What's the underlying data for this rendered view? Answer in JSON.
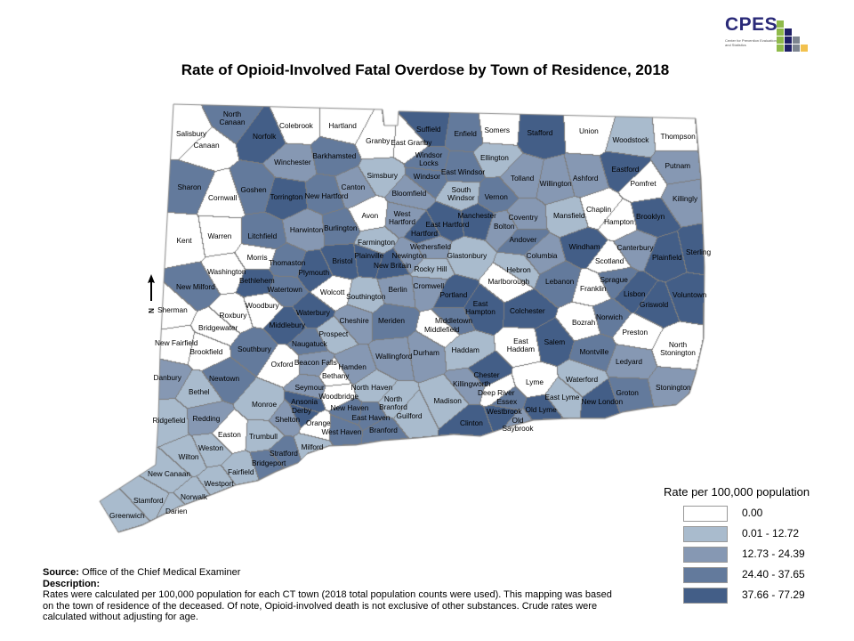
{
  "title": "Rate of Opioid-Involved Fatal Overdose by Town of Residence, 2018",
  "logo": {
    "acronym": "CPES",
    "subtitle": "Center for Prevention Evaluation and Statistics"
  },
  "north_arrow_label": "N",
  "legend": {
    "title": "Rate per 100,000 population",
    "classes": [
      {
        "label": "0.00",
        "color": "#ffffff"
      },
      {
        "label": "0.01 - 12.72",
        "color": "#a9bbcd"
      },
      {
        "label": "12.73 - 24.39",
        "color": "#8698b3"
      },
      {
        "label": "24.40 - 37.65",
        "color": "#637a9c"
      },
      {
        "label": "37.66 - 77.29",
        "color": "#435e87"
      }
    ]
  },
  "footer": {
    "source_label": "Source:",
    "source": "Office of the Chief Medical Examiner",
    "description_label": "Description:",
    "description": "Rates were calculated per 100,000 population for each CT town (2018 total population counts were used). This mapping was based on the town of residence of the deceased. Of note,  Opioid-involved death is not exclusive of other substances. Crude rates were calculated without adjusting for age."
  },
  "towns": [
    {
      "name": "Salisbury",
      "class": 0
    },
    {
      "name": "North Canaan",
      "class": 3
    },
    {
      "name": "Canaan",
      "class": 0
    },
    {
      "name": "Norfolk",
      "class": 4
    },
    {
      "name": "Colebrook",
      "class": 0
    },
    {
      "name": "Hartland",
      "class": 0
    },
    {
      "name": "Granby",
      "class": 0
    },
    {
      "name": "East Granby",
      "class": 0
    },
    {
      "name": "Winchester",
      "class": 2
    },
    {
      "name": "Barkhamsted",
      "class": 3
    },
    {
      "name": "Sharon",
      "class": 3
    },
    {
      "name": "Cornwall",
      "class": 0
    },
    {
      "name": "Goshen",
      "class": 3
    },
    {
      "name": "Torrington",
      "class": 4
    },
    {
      "name": "New Hartford",
      "class": 3
    },
    {
      "name": "Canton",
      "class": 2
    },
    {
      "name": "Simsbury",
      "class": 1
    },
    {
      "name": "Bloomfield",
      "class": 2
    },
    {
      "name": "Avon",
      "class": 0
    },
    {
      "name": "West Hartford",
      "class": 2
    },
    {
      "name": "Kent",
      "class": 0
    },
    {
      "name": "Warren",
      "class": 0
    },
    {
      "name": "Litchfield",
      "class": 3
    },
    {
      "name": "Harwinton",
      "class": 2
    },
    {
      "name": "Burlington",
      "class": 3
    },
    {
      "name": "Farmington",
      "class": 1
    },
    {
      "name": "Morris",
      "class": 0
    },
    {
      "name": "Washington",
      "class": 0
    },
    {
      "name": "Thomaston",
      "class": 3
    },
    {
      "name": "Plymouth",
      "class": 4
    },
    {
      "name": "Bristol",
      "class": 4
    },
    {
      "name": "Plainville",
      "class": 4
    },
    {
      "name": "New Britain",
      "class": 4
    },
    {
      "name": "Newington",
      "class": 2
    },
    {
      "name": "Hartford",
      "class": 4
    },
    {
      "name": "Suffield",
      "class": 4
    },
    {
      "name": "Windsor Locks",
      "class": 3
    },
    {
      "name": "Windsor",
      "class": 3
    },
    {
      "name": "East Windsor",
      "class": 3
    },
    {
      "name": "South Windsor",
      "class": 1
    },
    {
      "name": "East Hartford",
      "class": 4
    },
    {
      "name": "Manchester",
      "class": 4
    },
    {
      "name": "Wethersfield",
      "class": 2
    },
    {
      "name": "Glastonbury",
      "class": 1
    },
    {
      "name": "Rocky Hill",
      "class": 1
    },
    {
      "name": "Cromwell",
      "class": 2
    },
    {
      "name": "Berlin",
      "class": 2
    },
    {
      "name": "Southington",
      "class": 1
    },
    {
      "name": "Portland",
      "class": 4
    },
    {
      "name": "East Hampton",
      "class": 4
    },
    {
      "name": "Marlborough",
      "class": 0
    },
    {
      "name": "Hebron",
      "class": 1
    },
    {
      "name": "Bolton",
      "class": 2
    },
    {
      "name": "Coventry",
      "class": 2
    },
    {
      "name": "Andover",
      "class": 3
    },
    {
      "name": "Vernon",
      "class": 3
    },
    {
      "name": "Ellington",
      "class": 1
    },
    {
      "name": "Tolland",
      "class": 2
    },
    {
      "name": "Enfield",
      "class": 3
    },
    {
      "name": "Somers",
      "class": 0
    },
    {
      "name": "Stafford",
      "class": 4
    },
    {
      "name": "Union",
      "class": 0
    },
    {
      "name": "Woodstock",
      "class": 1
    },
    {
      "name": "Thompson",
      "class": 0
    },
    {
      "name": "Putnam",
      "class": 2
    },
    {
      "name": "Eastford",
      "class": 4
    },
    {
      "name": "Ashford",
      "class": 2
    },
    {
      "name": "Willington",
      "class": 2
    },
    {
      "name": "Pomfret",
      "class": 0
    },
    {
      "name": "Killingly",
      "class": 2
    },
    {
      "name": "Mansfield",
      "class": 1
    },
    {
      "name": "Chaplin",
      "class": 0
    },
    {
      "name": "Hampton",
      "class": 0
    },
    {
      "name": "Brooklyn",
      "class": 4
    },
    {
      "name": "Windham",
      "class": 4
    },
    {
      "name": "Canterbury",
      "class": 2
    },
    {
      "name": "Plainfield",
      "class": 4
    },
    {
      "name": "Sterling",
      "class": 4
    },
    {
      "name": "Columbia",
      "class": 2
    },
    {
      "name": "Scotland",
      "class": 0
    },
    {
      "name": "Lebanon",
      "class": 3
    },
    {
      "name": "Franklin",
      "class": 0
    },
    {
      "name": "Sprague",
      "class": 3
    },
    {
      "name": "Lisbon",
      "class": 4
    },
    {
      "name": "Griswold",
      "class": 4
    },
    {
      "name": "Voluntown",
      "class": 4
    },
    {
      "name": "Colchester",
      "class": 4
    },
    {
      "name": "Bozrah",
      "class": 0
    },
    {
      "name": "Norwich",
      "class": 3
    },
    {
      "name": "Preston",
      "class": 0
    },
    {
      "name": "North Stonington",
      "class": 0
    },
    {
      "name": "Salem",
      "class": 4
    },
    {
      "name": "Montville",
      "class": 3
    },
    {
      "name": "Ledyard",
      "class": 2
    },
    {
      "name": "East Haddam",
      "class": 0
    },
    {
      "name": "Haddam",
      "class": 1
    },
    {
      "name": "Middletown",
      "class": 3
    },
    {
      "name": "Middlefield",
      "class": 0
    },
    {
      "name": "Durham",
      "class": 2
    },
    {
      "name": "Meriden",
      "class": 3
    },
    {
      "name": "Cheshire",
      "class": 2
    },
    {
      "name": "Wallingford",
      "class": 2
    },
    {
      "name": "Waterbury",
      "class": 4
    },
    {
      "name": "Middlebury",
      "class": 4
    },
    {
      "name": "Watertown",
      "class": 3
    },
    {
      "name": "Bethlehem",
      "class": 4
    },
    {
      "name": "Woodbury",
      "class": 0
    },
    {
      "name": "Wolcott",
      "class": 0
    },
    {
      "name": "Roxbury",
      "class": 0
    },
    {
      "name": "New Milford",
      "class": 3
    },
    {
      "name": "Sherman",
      "class": 0
    },
    {
      "name": "Bridgewater",
      "class": 0
    },
    {
      "name": "New Fairfield",
      "class": 0
    },
    {
      "name": "Brookfield",
      "class": 0
    },
    {
      "name": "Southbury",
      "class": 3
    },
    {
      "name": "Prospect",
      "class": 1
    },
    {
      "name": "Naugatuck",
      "class": 3
    },
    {
      "name": "Oxford",
      "class": 0
    },
    {
      "name": "Beacon Falls",
      "class": 2
    },
    {
      "name": "Bethany",
      "class": 0
    },
    {
      "name": "Hamden",
      "class": 2
    },
    {
      "name": "North Haven",
      "class": 1
    },
    {
      "name": "Danbury",
      "class": 2
    },
    {
      "name": "Bethel",
      "class": 1
    },
    {
      "name": "Newtown",
      "class": 3
    },
    {
      "name": "Seymour",
      "class": 2
    },
    {
      "name": "Woodbridge",
      "class": 0
    },
    {
      "name": "Ansonia",
      "class": 4
    },
    {
      "name": "Derby",
      "class": 4
    },
    {
      "name": "Monroe",
      "class": 1
    },
    {
      "name": "Shelton",
      "class": 2
    },
    {
      "name": "Ridgefield",
      "class": 1
    },
    {
      "name": "Redding",
      "class": 2
    },
    {
      "name": "New Haven",
      "class": 3
    },
    {
      "name": "East Haven",
      "class": 3
    },
    {
      "name": "West Haven",
      "class": 3
    },
    {
      "name": "Orange",
      "class": 0
    },
    {
      "name": "North Branford",
      "class": 1
    },
    {
      "name": "Guilford",
      "class": 1
    },
    {
      "name": "Madison",
      "class": 1
    },
    {
      "name": "Branford",
      "class": 3
    },
    {
      "name": "Killingworth",
      "class": 2
    },
    {
      "name": "Chester",
      "class": 4
    },
    {
      "name": "Deep River",
      "class": 0
    },
    {
      "name": "Essex",
      "class": 3
    },
    {
      "name": "Westbrook",
      "class": 4
    },
    {
      "name": "Clinton",
      "class": 4
    },
    {
      "name": "Old Saybrook",
      "class": 2
    },
    {
      "name": "Lyme",
      "class": 0
    },
    {
      "name": "Old Lyme",
      "class": 4
    },
    {
      "name": "East Lyme",
      "class": 1
    },
    {
      "name": "Waterford",
      "class": 1
    },
    {
      "name": "New London",
      "class": 4
    },
    {
      "name": "Groton",
      "class": 3
    },
    {
      "name": "Stonington",
      "class": 2
    },
    {
      "name": "Easton",
      "class": 0
    },
    {
      "name": "Trumbull",
      "class": 1
    },
    {
      "name": "Weston",
      "class": 1
    },
    {
      "name": "Wilton",
      "class": 1
    },
    {
      "name": "Fairfield",
      "class": 1
    },
    {
      "name": "Stratford",
      "class": 3
    },
    {
      "name": "Bridgeport",
      "class": 3
    },
    {
      "name": "Milford",
      "class": 1
    },
    {
      "name": "New Canaan",
      "class": 1
    },
    {
      "name": "Westport",
      "class": 1
    },
    {
      "name": "Norwalk",
      "class": 1
    },
    {
      "name": "Stamford",
      "class": 1
    },
    {
      "name": "Darien",
      "class": 1
    },
    {
      "name": "Greenwich",
      "class": 1
    }
  ]
}
